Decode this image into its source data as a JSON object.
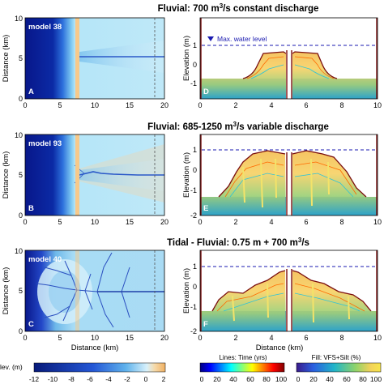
{
  "rows": [
    {
      "title_pre": "Fluvial: 700 m",
      "title_sup": "3",
      "title_post": "/s constant discharge",
      "model": "model 38",
      "map_letter": "A",
      "profile_letter": "D",
      "legend_label": "Max. water level",
      "map_x_ticks": [
        "0",
        "5",
        "10",
        "15",
        "20"
      ],
      "map_y_ticks": [
        "10",
        "5",
        "0"
      ],
      "prof_x_ticks": [
        "0",
        "2",
        "4",
        "6",
        "8",
        "10"
      ],
      "prof_y_ticks": [
        "1",
        "0",
        "-1"
      ]
    },
    {
      "title_pre": "Fluvial: 685-1250 m",
      "title_sup": "3",
      "title_post": "/s variable discharge",
      "model": "model 93",
      "map_letter": "B",
      "profile_letter": "E",
      "map_x_ticks": [
        "0",
        "5",
        "10",
        "15",
        "20"
      ],
      "map_y_ticks": [
        "10",
        "5",
        "0"
      ],
      "prof_x_ticks": [
        "0",
        "2",
        "4",
        "6",
        "8",
        "10"
      ],
      "prof_y_ticks": [
        "1",
        "0",
        "-1",
        "-2"
      ]
    },
    {
      "title_pre": "Tidal - Fluvial: 0.75 m + 700 m",
      "title_sup": "3",
      "title_post": "/s",
      "model": "model 40",
      "map_letter": "C",
      "profile_letter": "F",
      "map_x_ticks": [
        "0",
        "5",
        "10",
        "15",
        "20"
      ],
      "map_y_ticks": [
        "10",
        "5",
        "0"
      ],
      "prof_x_ticks": [
        "0",
        "2",
        "4",
        "6",
        "8",
        "10"
      ],
      "prof_y_ticks": [
        "1",
        "0",
        "-1",
        "-2"
      ]
    }
  ],
  "axes": {
    "map_ylabel": "Distance (km)",
    "map_xlabel": "Distance (km)",
    "prof_ylabel": "Elevation (m)",
    "prof_xlabel": "Distance (km)"
  },
  "colorbars": {
    "elev": {
      "label": "lev. (m)",
      "ticks": [
        "-12",
        "-10",
        "-8",
        "-6",
        "-4",
        "-2",
        "0",
        "2"
      ]
    },
    "time": {
      "label": "Lines: Time (yrs)",
      "ticks": [
        "0",
        "20",
        "40",
        "60",
        "80",
        "100"
      ]
    },
    "fill": {
      "label": "Fill: VFS+Silt (%)",
      "ticks": [
        "0",
        "20",
        "40",
        "60",
        "80",
        "100"
      ]
    }
  },
  "colors": {
    "deep_sea": "#0a1e8c",
    "channel_sand": "#f7c98a",
    "water_light": "#a8dcf5",
    "water_mid": "#6fb9ea",
    "substrate": "#1f4fd6",
    "max_water_line": "#1a1ab0",
    "bank_outline": "#7a0e0e"
  }
}
